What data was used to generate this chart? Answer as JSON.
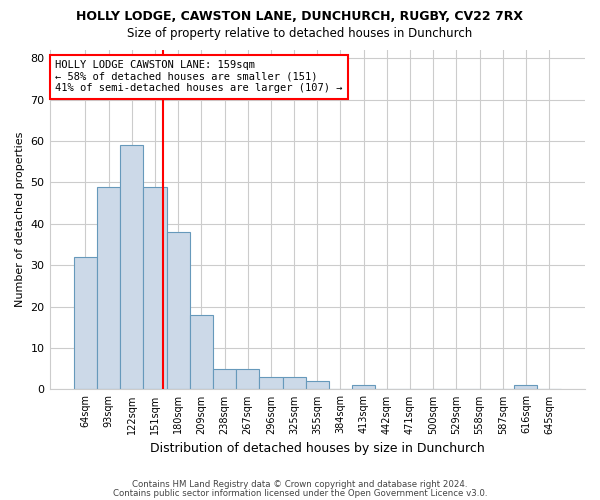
{
  "title": "HOLLY LODGE, CAWSTON LANE, DUNCHURCH, RUGBY, CV22 7RX",
  "subtitle": "Size of property relative to detached houses in Dunchurch",
  "xlabel": "Distribution of detached houses by size in Dunchurch",
  "ylabel": "Number of detached properties",
  "bar_color": "#ccd9e8",
  "bar_edge_color": "#6699bb",
  "categories": [
    "64sqm",
    "93sqm",
    "122sqm",
    "151sqm",
    "180sqm",
    "209sqm",
    "238sqm",
    "267sqm",
    "296sqm",
    "325sqm",
    "355sqm",
    "384sqm",
    "413sqm",
    "442sqm",
    "471sqm",
    "500sqm",
    "529sqm",
    "558sqm",
    "587sqm",
    "616sqm",
    "645sqm"
  ],
  "values": [
    32,
    49,
    59,
    49,
    38,
    18,
    5,
    5,
    3,
    3,
    2,
    0,
    1,
    0,
    0,
    0,
    0,
    0,
    0,
    1,
    0
  ],
  "ylim": [
    0,
    82
  ],
  "yticks": [
    0,
    10,
    20,
    30,
    40,
    50,
    60,
    70,
    80
  ],
  "red_line_x": 3.33,
  "annotation_title": "HOLLY LODGE CAWSTON LANE: 159sqm",
  "annotation_line1": "← 58% of detached houses are smaller (151)",
  "annotation_line2": "41% of semi-detached houses are larger (107) →",
  "footer1": "Contains HM Land Registry data © Crown copyright and database right 2024.",
  "footer2": "Contains public sector information licensed under the Open Government Licence v3.0.",
  "background_color": "#ffffff",
  "grid_color": "#cccccc"
}
